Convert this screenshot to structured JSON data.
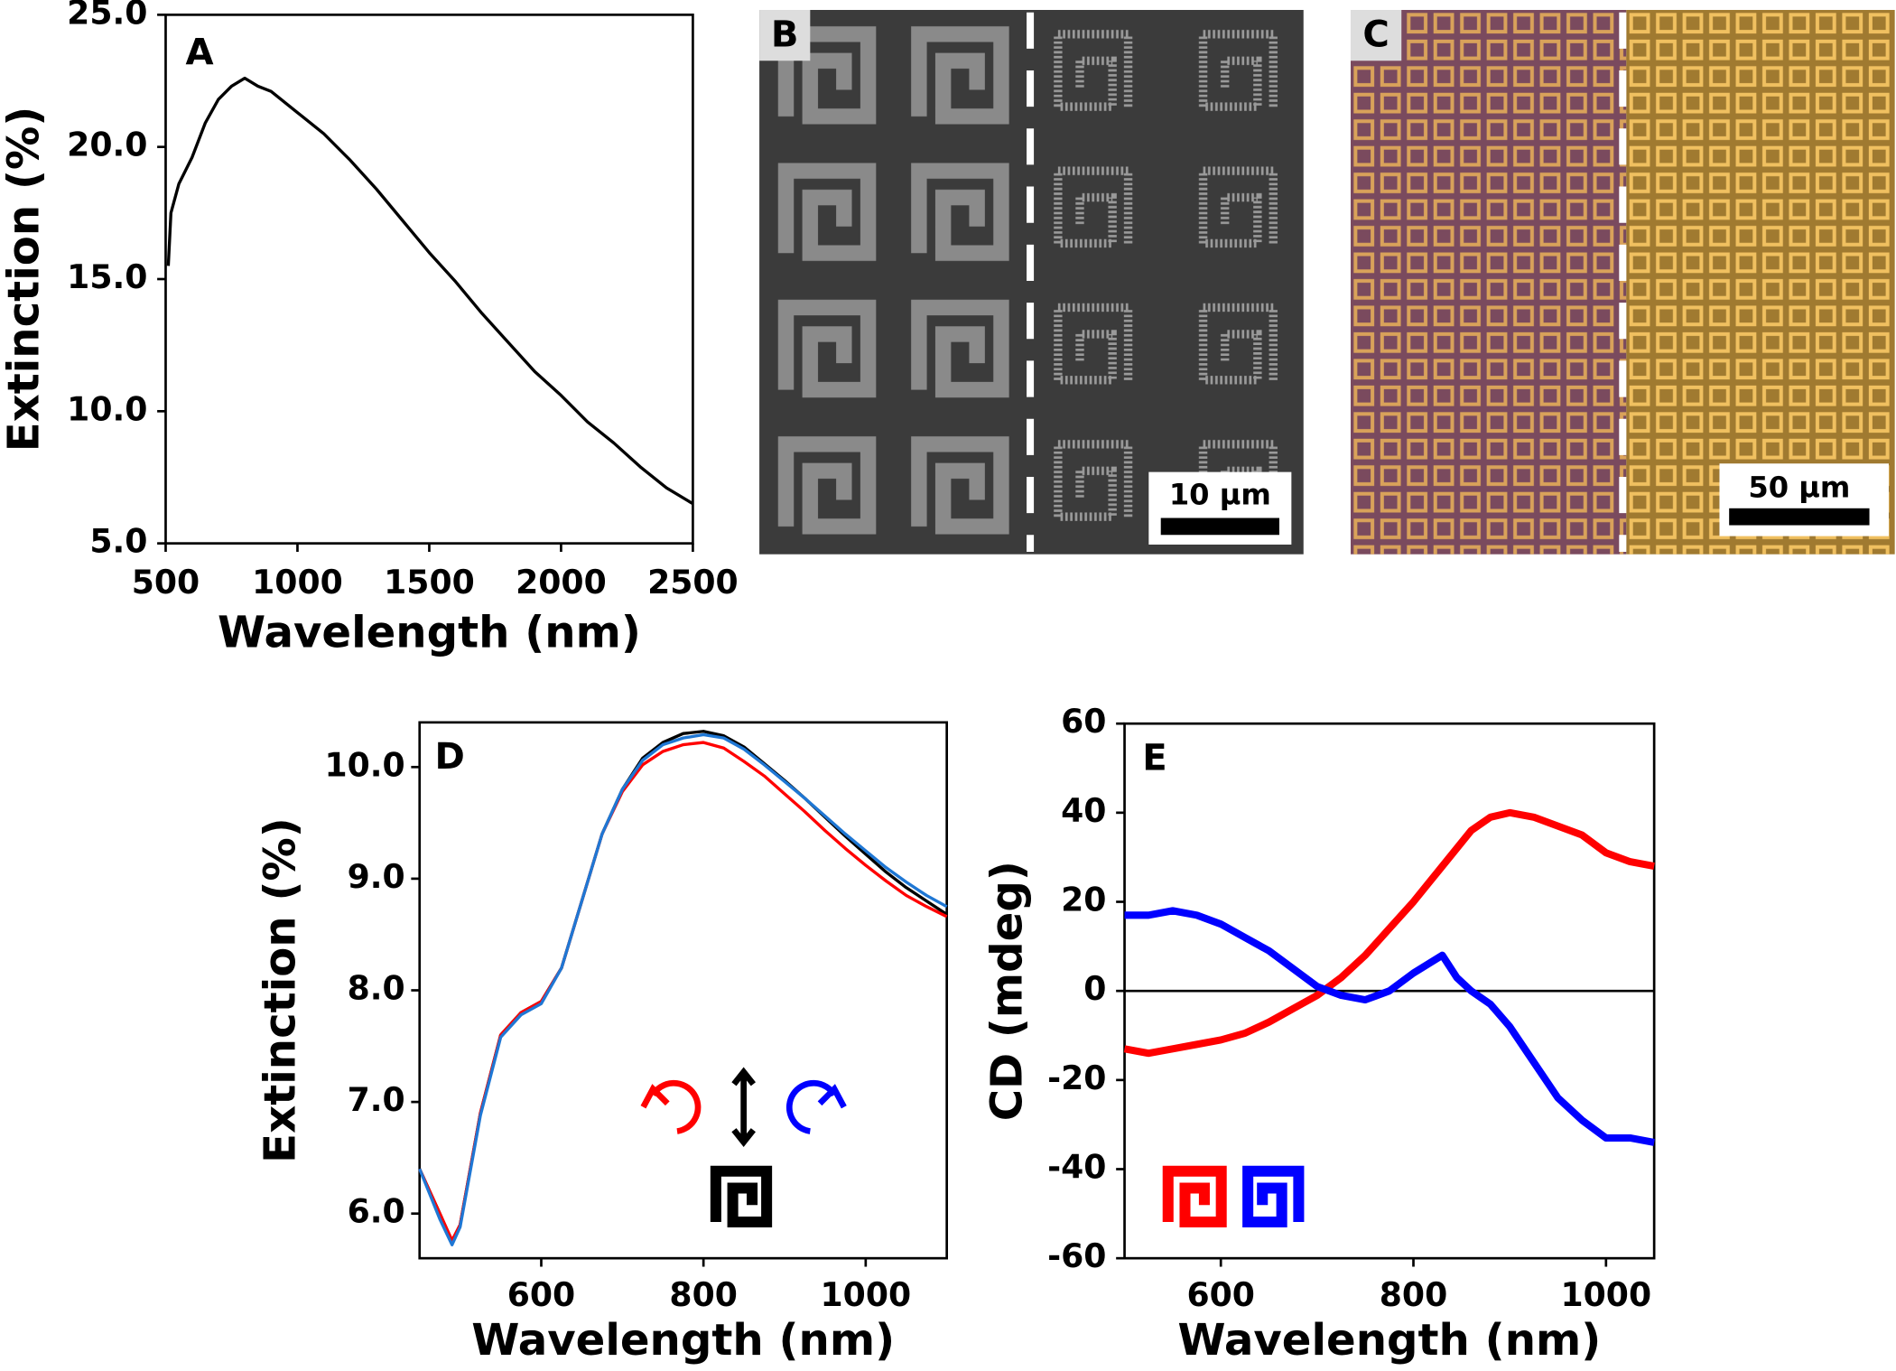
{
  "chart_data": [
    {
      "type": "line",
      "panel_label": "A",
      "x_label": "Wavelength (nm)",
      "y_label": "Extinction (%)",
      "x": [
        510,
        520,
        550,
        600,
        650,
        700,
        750,
        800,
        850,
        900,
        1000,
        1100,
        1200,
        1300,
        1400,
        1500,
        1600,
        1700,
        1800,
        1900,
        2000,
        2100,
        2200,
        2300,
        2400,
        2500
      ],
      "series": [
        {
          "color": "#000000",
          "values": [
            15.5,
            17.5,
            18.6,
            19.6,
            20.9,
            21.8,
            22.3,
            22.6,
            22.3,
            22.1,
            21.3,
            20.5,
            19.5,
            18.4,
            17.2,
            16.0,
            14.9,
            13.7,
            12.6,
            11.5,
            10.6,
            9.6,
            8.8,
            7.9,
            7.1,
            6.5
          ]
        }
      ],
      "xlim": [
        500,
        2500
      ],
      "xticks": [
        500,
        1000,
        1500,
        2000,
        2500
      ],
      "ylim": [
        5,
        25
      ],
      "yticks": [
        {
          "value": 5,
          "label": "5.0"
        },
        {
          "value": 10,
          "label": "10.0"
        },
        {
          "value": 15,
          "label": "15.0"
        },
        {
          "value": 20,
          "label": "20.0"
        },
        {
          "value": 25,
          "label": "25.0"
        }
      ]
    },
    {
      "type": "image",
      "panel_label": "B",
      "scale_bar": "10 µm"
    },
    {
      "type": "image",
      "panel_label": "C",
      "scale_bar": "50 µm"
    },
    {
      "type": "line",
      "panel_label": "D",
      "x_label": "Wavelength (nm)",
      "y_label": "Extinction (%)",
      "x": [
        450,
        475,
        490,
        500,
        525,
        550,
        575,
        600,
        625,
        650,
        675,
        700,
        725,
        750,
        775,
        800,
        825,
        850,
        875,
        900,
        925,
        950,
        975,
        1000,
        1025,
        1050,
        1075,
        1100
      ],
      "series": [
        {
          "color": "#000000",
          "values": [
            6.4,
            6.0,
            5.75,
            5.9,
            6.9,
            7.6,
            7.8,
            7.9,
            8.2,
            8.8,
            9.4,
            9.8,
            10.08,
            10.22,
            10.3,
            10.32,
            10.28,
            10.18,
            10.03,
            9.88,
            9.72,
            9.55,
            9.38,
            9.22,
            9.06,
            8.92,
            8.8,
            8.68
          ]
        },
        {
          "color": "#ff0000",
          "values": [
            6.4,
            6.0,
            5.76,
            5.9,
            6.9,
            7.6,
            7.8,
            7.9,
            8.2,
            8.8,
            9.4,
            9.78,
            10.02,
            10.14,
            10.2,
            10.22,
            10.17,
            10.05,
            9.92,
            9.76,
            9.6,
            9.43,
            9.27,
            9.12,
            8.98,
            8.85,
            8.75,
            8.66
          ]
        },
        {
          "color": "#1f77d4",
          "values": [
            6.4,
            5.95,
            5.72,
            5.88,
            6.88,
            7.58,
            7.78,
            7.88,
            8.2,
            8.8,
            9.4,
            9.8,
            10.06,
            10.2,
            10.26,
            10.29,
            10.26,
            10.16,
            10.02,
            9.87,
            9.72,
            9.56,
            9.4,
            9.25,
            9.1,
            8.97,
            8.85,
            8.75
          ]
        }
      ],
      "xlim": [
        450,
        1100
      ],
      "xticks": [
        600,
        800,
        1000
      ],
      "ylim": [
        5.6,
        10.4
      ],
      "yticks": [
        {
          "value": 6,
          "label": "6.0"
        },
        {
          "value": 7,
          "label": "7.0"
        },
        {
          "value": 8,
          "label": "8.0"
        },
        {
          "value": 9,
          "label": "9.0"
        },
        {
          "value": 10,
          "label": "10.0"
        }
      ]
    },
    {
      "type": "line",
      "panel_label": "E",
      "x_label": "Wavelength (nm)",
      "y_label": "CD (mdeg)",
      "hline": 0,
      "x": [
        500,
        525,
        550,
        575,
        600,
        625,
        650,
        675,
        700,
        725,
        750,
        775,
        800,
        815,
        830,
        845,
        860,
        880,
        900,
        925,
        950,
        975,
        1000,
        1025,
        1050
      ],
      "series": [
        {
          "color": "#ff0000",
          "values": [
            -13,
            -14,
            -13,
            -12,
            -11,
            -9.5,
            -7,
            -4,
            -1,
            3,
            8,
            14,
            20,
            24,
            28,
            32,
            36,
            39,
            40,
            39,
            37,
            35,
            31,
            29,
            28
          ]
        },
        {
          "color": "#0000ff",
          "values": [
            17,
            17,
            18,
            17,
            15,
            12,
            9,
            5,
            1,
            -1,
            -2,
            0,
            4,
            6,
            8,
            3,
            0,
            -3,
            -8,
            -16,
            -24,
            -29,
            -33,
            -33,
            -34
          ]
        }
      ],
      "xlim": [
        500,
        1050
      ],
      "xticks": [
        600,
        800,
        1000
      ],
      "ylim": [
        -60,
        60
      ],
      "yticks": [
        -60,
        -40,
        -20,
        0,
        20,
        40,
        60
      ]
    }
  ]
}
